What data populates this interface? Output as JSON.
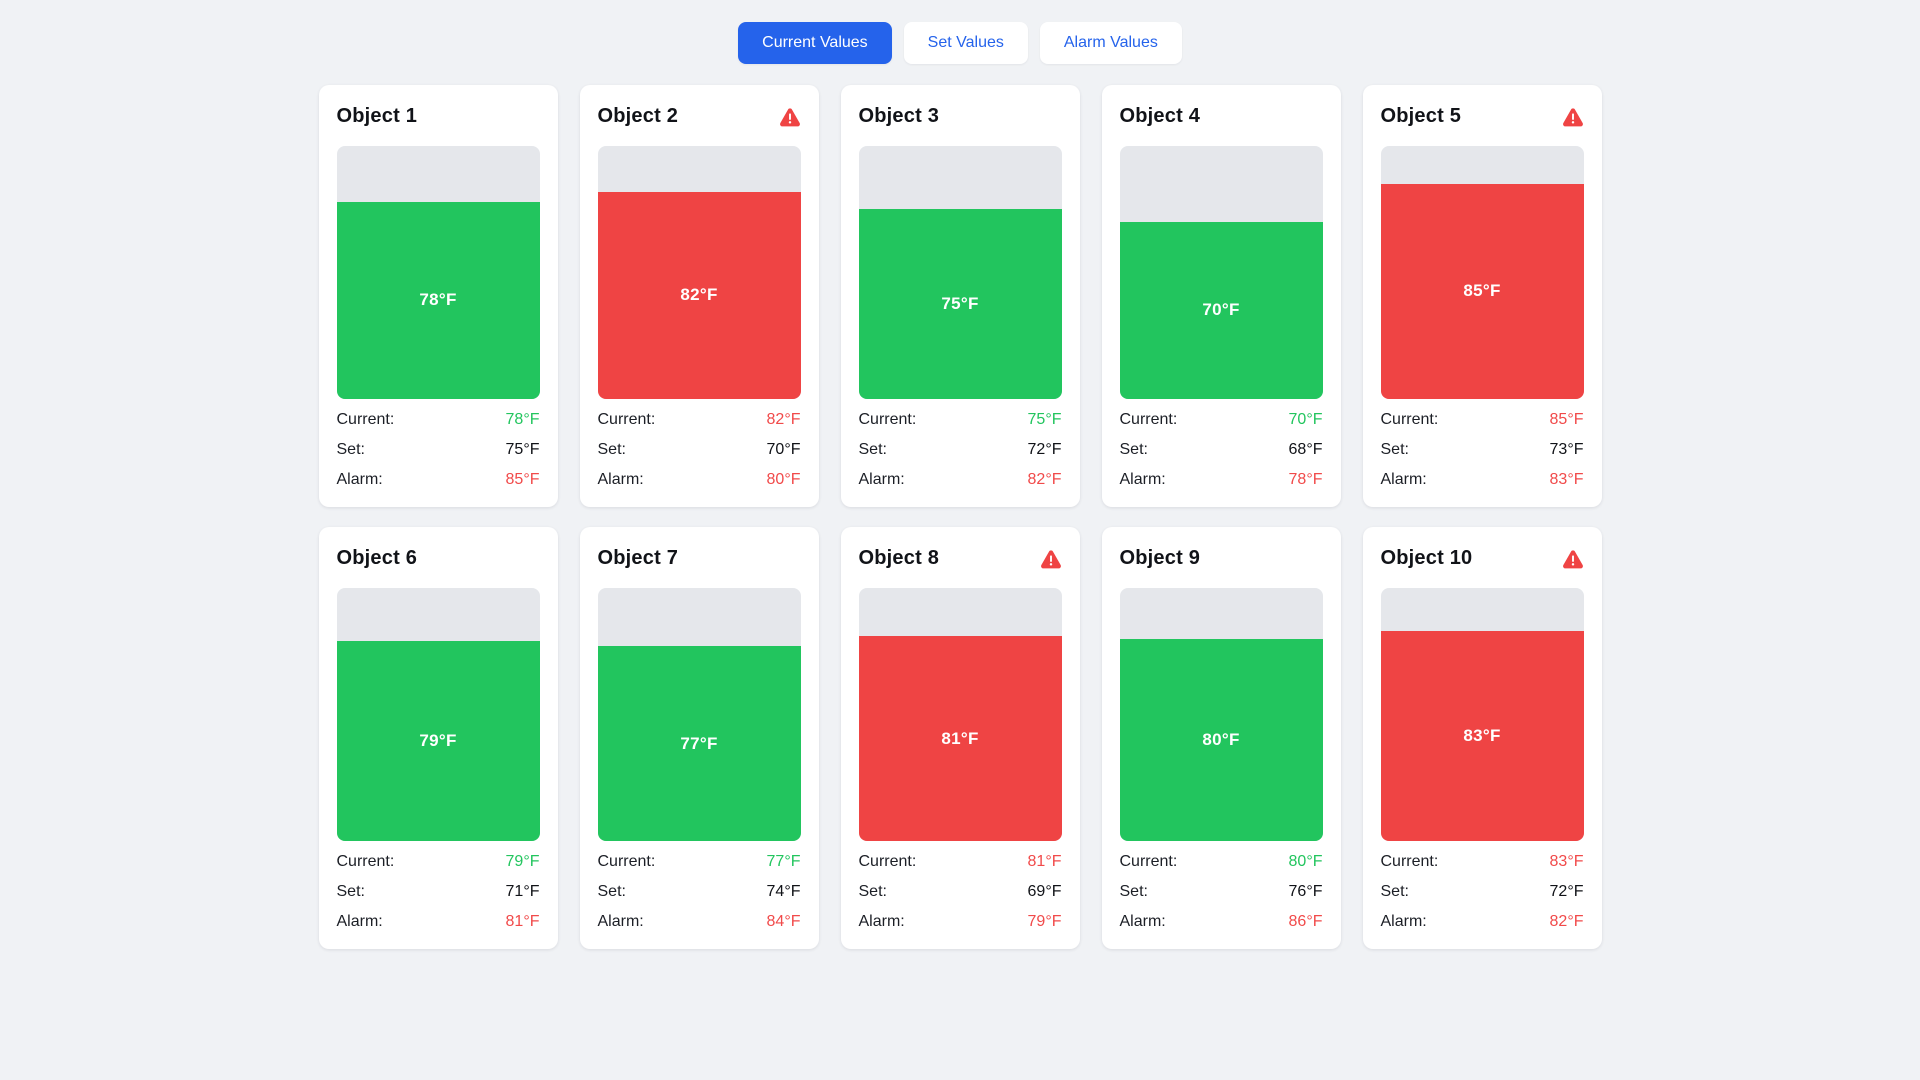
{
  "unit": "°F",
  "colors": {
    "ok": "#22c55e",
    "alarm": "#ef4444",
    "accent": "#2563eb",
    "track": "#e5e7eb",
    "page_background": "#f0f2f5"
  },
  "tabs": [
    {
      "label": "Current Values",
      "active": true
    },
    {
      "label": "Set Values",
      "active": false
    },
    {
      "label": "Alarm Values",
      "active": false
    }
  ],
  "row_labels": {
    "current": "Current:",
    "set": "Set:",
    "alarm": "Alarm:"
  },
  "objects": [
    {
      "name": "Object 1",
      "current": 78,
      "set": 75,
      "alarm": 85,
      "status": "ok",
      "warning": false
    },
    {
      "name": "Object 2",
      "current": 82,
      "set": 70,
      "alarm": 80,
      "status": "alarm",
      "warning": true
    },
    {
      "name": "Object 3",
      "current": 75,
      "set": 72,
      "alarm": 82,
      "status": "ok",
      "warning": false
    },
    {
      "name": "Object 4",
      "current": 70,
      "set": 68,
      "alarm": 78,
      "status": "ok",
      "warning": false
    },
    {
      "name": "Object 5",
      "current": 85,
      "set": 73,
      "alarm": 83,
      "status": "alarm",
      "warning": true
    },
    {
      "name": "Object 6",
      "current": 79,
      "set": 71,
      "alarm": 81,
      "status": "ok",
      "warning": false
    },
    {
      "name": "Object 7",
      "current": 77,
      "set": 74,
      "alarm": 84,
      "status": "ok",
      "warning": false
    },
    {
      "name": "Object 8",
      "current": 81,
      "set": 69,
      "alarm": 79,
      "status": "alarm",
      "warning": true
    },
    {
      "name": "Object 9",
      "current": 80,
      "set": 76,
      "alarm": 86,
      "status": "ok",
      "warning": false
    },
    {
      "name": "Object 10",
      "current": 83,
      "set": 72,
      "alarm": 82,
      "status": "alarm",
      "warning": true
    }
  ]
}
